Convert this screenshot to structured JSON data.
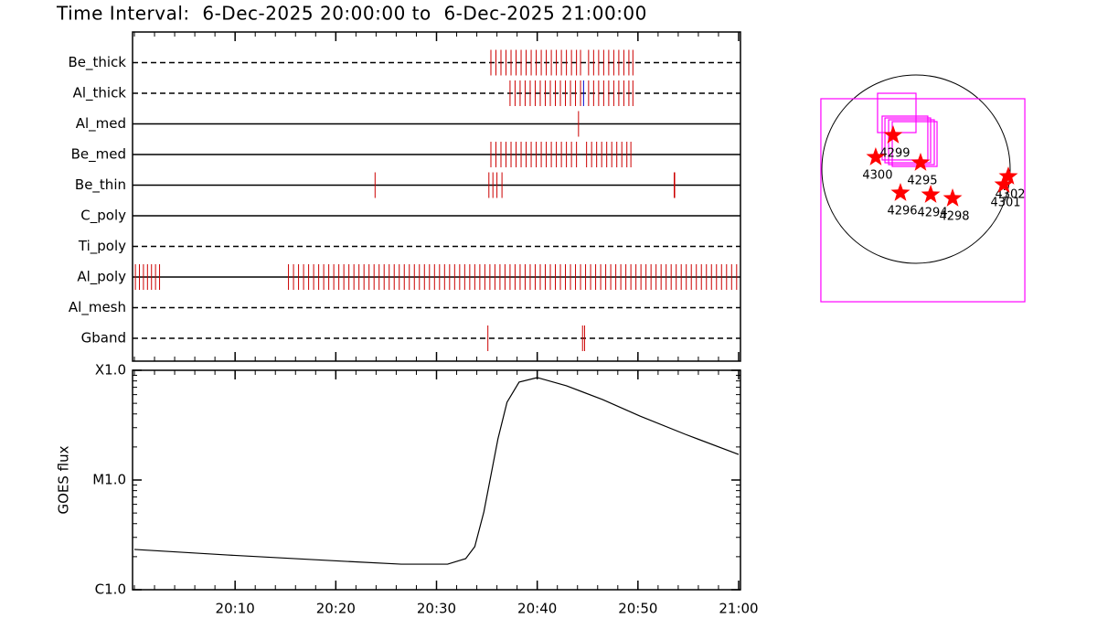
{
  "chart_data": [
    {
      "type": "event",
      "title": "Time Interval:  6-Dec-2025 20:00:00 to  6-Dec-2025 21:00:00",
      "xlim": [
        0,
        60
      ],
      "series": [
        {
          "name": "Be_thick",
          "linestyle": "dashed",
          "color": "#cc0000",
          "values": [
            35.4,
            35.9,
            36.4,
            36.9,
            37.4,
            37.9,
            38.4,
            38.9,
            39.4,
            39.9,
            40.4,
            40.9,
            41.4,
            41.9,
            42.4,
            42.9,
            43.4,
            43.9,
            44.3,
            45.1,
            45.6,
            46.1,
            46.6,
            47.1,
            47.6,
            48.1,
            48.6,
            49.1,
            49.5
          ]
        },
        {
          "name": "Al_thick",
          "linestyle": "dashed",
          "color": "#cc0000",
          "values": [
            37.3,
            37.8,
            38.3,
            38.8,
            39.3,
            39.8,
            40.3,
            40.8,
            41.3,
            41.8,
            42.3,
            42.8,
            43.3,
            43.8,
            44.3,
            45.1,
            45.6,
            46.1,
            46.6,
            47.1,
            47.6,
            48.1,
            48.6,
            49.1,
            49.5
          ],
          "extra_color": "#0000cc",
          "extra_values": [
            44.6
          ]
        },
        {
          "name": "Al_med",
          "linestyle": "solid",
          "color": "#cc0000",
          "values": [
            44.1
          ]
        },
        {
          "name": "Be_med",
          "linestyle": "solid",
          "color": "#cc0000",
          "values": [
            35.4,
            35.9,
            36.4,
            36.9,
            37.4,
            37.9,
            38.4,
            38.9,
            39.4,
            39.9,
            40.4,
            40.9,
            41.4,
            41.9,
            42.4,
            42.9,
            43.4,
            43.9,
            44.9,
            45.4,
            45.9,
            46.4,
            46.9,
            47.4,
            47.9,
            48.4,
            48.9,
            49.3
          ]
        },
        {
          "name": "Be_thin",
          "linestyle": "solid",
          "color": "#cc0000",
          "values": [
            23.9,
            35.2,
            35.6,
            36.0,
            36.5,
            53.6,
            53.65
          ]
        },
        {
          "name": "C_poly",
          "linestyle": "solid",
          "color": "#cc0000",
          "values": []
        },
        {
          "name": "Ti_poly",
          "linestyle": "dashed",
          "color": "#cc0000",
          "values": []
        },
        {
          "name": "Al_poly",
          "linestyle": "solid",
          "color": "#cc0000",
          "values": [
            0.1,
            0.5,
            0.9,
            1.3,
            1.7,
            2.1,
            2.5,
            15.3,
            15.8,
            16.3,
            16.8,
            17.3,
            17.8,
            18.3,
            18.8,
            19.3,
            19.8,
            20.3,
            20.8,
            21.3,
            21.8,
            22.3,
            22.8,
            23.3,
            23.8,
            24.3,
            24.8,
            25.3,
            25.8,
            26.3,
            26.8,
            27.3,
            27.8,
            28.3,
            28.8,
            29.3,
            29.8,
            30.3,
            30.8,
            31.3,
            31.8,
            32.3,
            32.8,
            33.3,
            33.8,
            34.3,
            34.8,
            35.3,
            35.8,
            36.3,
            36.8,
            37.3,
            37.8,
            38.3,
            38.8,
            39.3,
            39.8,
            40.3,
            40.8,
            41.3,
            41.8,
            42.3,
            42.8,
            43.3,
            43.8,
            44.3,
            44.8,
            45.3,
            45.8,
            46.3,
            46.8,
            47.3,
            47.8,
            48.3,
            48.8,
            49.3,
            49.8,
            50.3,
            50.8,
            51.3,
            51.8,
            52.3,
            52.8,
            53.3,
            53.8,
            54.3,
            54.8,
            55.3,
            55.8,
            56.3,
            56.8,
            57.3,
            57.8,
            58.3,
            58.8,
            59.3,
            59.8
          ]
        },
        {
          "name": "Al_mesh",
          "linestyle": "dashed",
          "color": "#cc0000",
          "values": []
        },
        {
          "name": "Gband",
          "linestyle": "dashed",
          "color": "#cc0000",
          "values": [
            35.1,
            44.5,
            44.7
          ]
        }
      ]
    },
    {
      "type": "line",
      "ylabel": "GOES flux",
      "log": true,
      "xlim": [
        0,
        60
      ],
      "xticks": [
        {
          "value": 10,
          "label": "20:10"
        },
        {
          "value": 20,
          "label": "20:20"
        },
        {
          "value": 30,
          "label": "20:30"
        },
        {
          "value": 40,
          "label": "20:40"
        },
        {
          "value": 50,
          "label": "20:50"
        },
        {
          "value": 60,
          "label": "21:00"
        }
      ],
      "ylim": [
        1e-06,
        0.0001
      ],
      "yticks": [
        {
          "value": 1e-06,
          "label": "C1.0"
        },
        {
          "value": 1e-05,
          "label": "M1.0"
        },
        {
          "value": 0.0001,
          "label": "X1.0"
        }
      ],
      "color": "#000000",
      "x": [
        0,
        9.3,
        21.1,
        26.5,
        31.1,
        32.9,
        33.8,
        34.7,
        36.1,
        37.0,
        38.2,
        40.0,
        42.9,
        46.5,
        50.2,
        54.7,
        60
      ],
      "values": [
        2.33e-06,
        2.07e-06,
        1.81e-06,
        1.71e-06,
        1.71e-06,
        1.92e-06,
        2.47e-06,
        5.11e-06,
        2.37e-05,
        5.11e-05,
        7.8e-05,
        8.58e-05,
        7.22e-05,
        5.41e-05,
        3.83e-05,
        2.61e-05,
        1.71e-05
      ]
    },
    {
      "type": "scatter",
      "sun_radius": 975,
      "color": "#ff0000",
      "x": [
        -237,
        -417,
        47,
        -161,
        152,
        379,
        956,
        909
      ],
      "y": [
        350,
        123,
        66,
        -246,
        -265,
        -303,
        -76,
        -161
      ],
      "labels": [
        "4299",
        "4300",
        "4295",
        "4296",
        "4294",
        "4298",
        "4302",
        "4301"
      ],
      "fov_color": "#ff00ff",
      "fov": [
        {
          "x": 71,
          "y": -322,
          "width": 2112,
          "height": 2102
        },
        {
          "x": -199,
          "y": 582,
          "width": 398,
          "height": 407
        },
        {
          "x": -114,
          "y": 322,
          "width": 473,
          "height": 454
        },
        {
          "x": -85,
          "y": 298,
          "width": 473,
          "height": 464
        },
        {
          "x": -47,
          "y": 279,
          "width": 473,
          "height": 464
        },
        {
          "x": -14,
          "y": 260,
          "width": 464,
          "height": 464
        }
      ]
    }
  ]
}
